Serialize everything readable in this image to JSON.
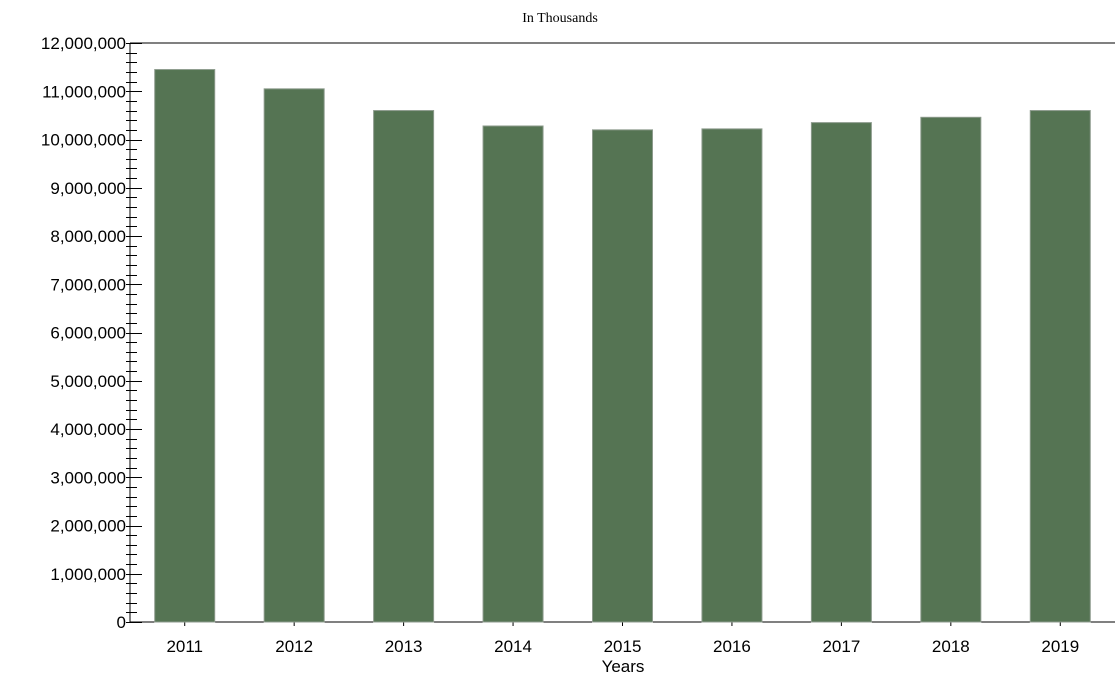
{
  "chart_data": {
    "type": "bar",
    "title": "In Thousands",
    "xlabel": "Years",
    "ylabel": "",
    "categories": [
      "2011",
      "2012",
      "2013",
      "2014",
      "2015",
      "2016",
      "2017",
      "2018",
      "2019"
    ],
    "values": [
      11450000,
      11050000,
      10600000,
      10280000,
      10200000,
      10220000,
      10350000,
      10460000,
      10600000
    ],
    "ylim": [
      0,
      12000000
    ],
    "y_ticks": [
      0,
      1000000,
      2000000,
      3000000,
      4000000,
      5000000,
      6000000,
      7000000,
      8000000,
      9000000,
      10000000,
      11000000,
      12000000
    ],
    "y_tick_labels": [
      "0",
      "1,000,000",
      "2,000,000",
      "3,000,000",
      "4,000,000",
      "5,000,000",
      "6,000,000",
      "7,000,000",
      "8,000,000",
      "9,000,000",
      "10,000,000",
      "11,000,000",
      "12,000,000"
    ],
    "grid": false,
    "legend": "none",
    "bar_color": "#557453",
    "axis_color": "#000000"
  }
}
